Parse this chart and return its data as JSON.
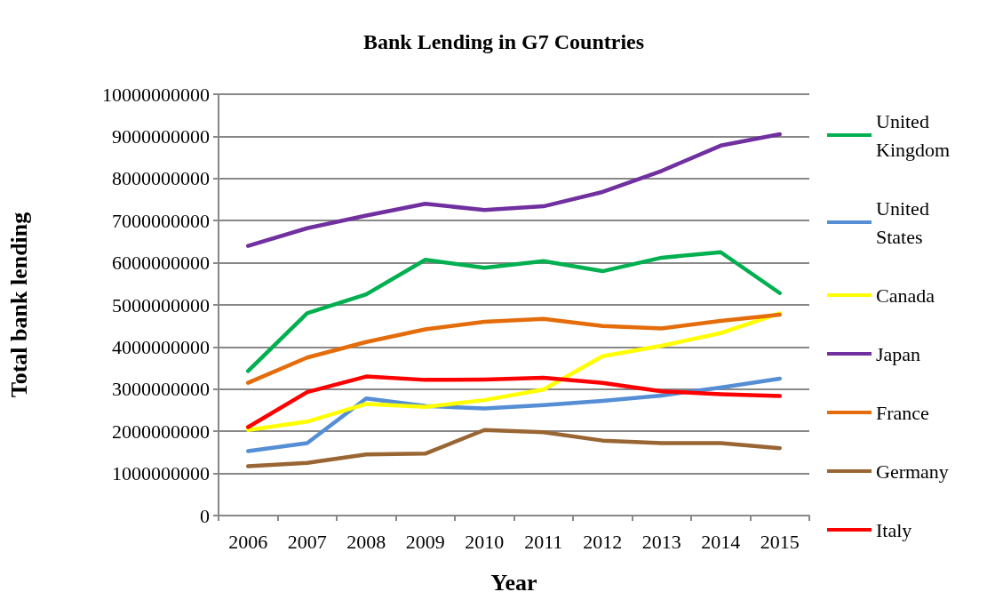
{
  "chart_data": {
    "type": "line",
    "title": "Bank Lending in G7 Countries",
    "xlabel": "Year",
    "ylabel": "Total bank lending",
    "categories": [
      "2006",
      "2007",
      "2008",
      "2009",
      "2010",
      "2011",
      "2012",
      "2013",
      "2014",
      "2015"
    ],
    "series": [
      {
        "name": "United Kingdom",
        "color": "#00b050",
        "values": [
          3430000000,
          4800000000,
          5250000000,
          6070000000,
          5880000000,
          6040000000,
          5800000000,
          6120000000,
          6250000000,
          5280000000
        ]
      },
      {
        "name": "United States",
        "color": "#558ed5",
        "values": [
          1530000000,
          1720000000,
          2780000000,
          2600000000,
          2540000000,
          2620000000,
          2720000000,
          2850000000,
          3040000000,
          3250000000
        ]
      },
      {
        "name": "Canada",
        "color": "#ffff00",
        "values": [
          2030000000,
          2230000000,
          2650000000,
          2580000000,
          2740000000,
          2990000000,
          3780000000,
          4030000000,
          4330000000,
          4800000000
        ]
      },
      {
        "name": "Japan",
        "color": "#7030a0",
        "values": [
          6400000000,
          6820000000,
          7120000000,
          7400000000,
          7250000000,
          7340000000,
          7680000000,
          8180000000,
          8780000000,
          9050000000
        ]
      },
      {
        "name": "France",
        "color": "#e46c0a",
        "values": [
          3150000000,
          3750000000,
          4120000000,
          4420000000,
          4600000000,
          4670000000,
          4500000000,
          4440000000,
          4620000000,
          4770000000
        ]
      },
      {
        "name": "Germany",
        "color": "#996633",
        "values": [
          1170000000,
          1250000000,
          1450000000,
          1470000000,
          2030000000,
          1980000000,
          1780000000,
          1720000000,
          1720000000,
          1600000000
        ]
      },
      {
        "name": "Italy",
        "color": "#ff0000",
        "values": [
          2100000000,
          2930000000,
          3300000000,
          3220000000,
          3230000000,
          3270000000,
          3150000000,
          2950000000,
          2880000000,
          2840000000
        ]
      }
    ],
    "ylim": [
      0,
      10000000000
    ],
    "yticks": [
      0,
      1000000000,
      2000000000,
      3000000000,
      4000000000,
      5000000000,
      6000000000,
      7000000000,
      8000000000,
      9000000000,
      10000000000
    ],
    "grid": "y",
    "legend": "right",
    "marker": "none",
    "line_style": "solid"
  }
}
